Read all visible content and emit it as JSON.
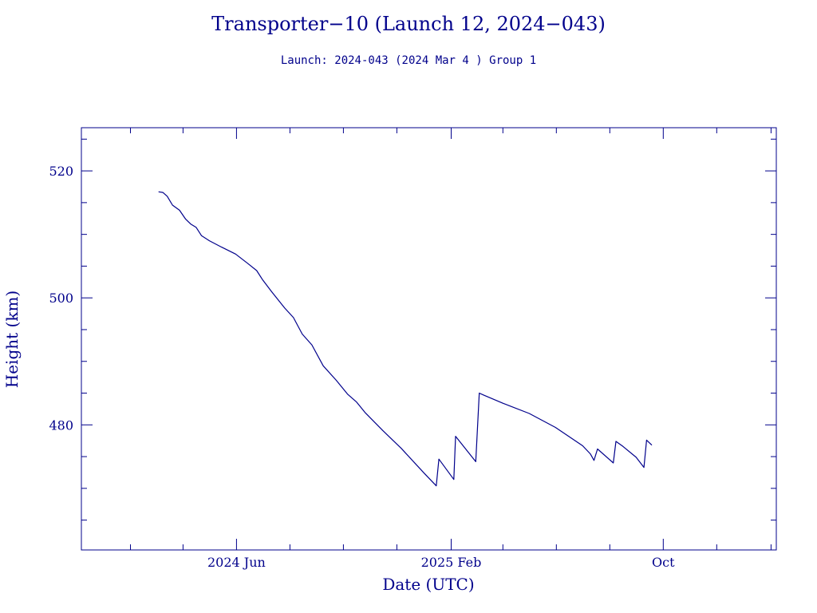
{
  "chart_data": {
    "type": "line",
    "title": "Transporter−10 (Launch 12, 2024−043)",
    "subtitle": "Launch: 2024-043  (2024 Mar  4 )  Group 1",
    "xlabel": "Date (UTC)",
    "ylabel": "Height (km)",
    "xlim": [
      "2023-12-07",
      "2026-02-07"
    ],
    "ylim": [
      460.3,
      526.8
    ],
    "x_ticks": [
      {
        "date": "2024-06-01",
        "label": "2024 Jun"
      },
      {
        "date": "2025-02-01",
        "label": "2025 Feb"
      },
      {
        "date": "2025-10-01",
        "label": "Oct"
      }
    ],
    "y_ticks": [
      {
        "value": 480,
        "label": "480"
      },
      {
        "value": 500,
        "label": "500"
      },
      {
        "value": 520,
        "label": "520"
      }
    ],
    "grid": false,
    "legend": "none",
    "color": "#00008b",
    "series": [
      {
        "points": [
          [
            "2024-03-04",
            516.7
          ],
          [
            "2024-03-09",
            516.6
          ],
          [
            "2024-03-14",
            516.0
          ],
          [
            "2024-03-20",
            514.6
          ],
          [
            "2024-03-28",
            513.8
          ],
          [
            "2024-04-04",
            512.4
          ],
          [
            "2024-04-10",
            511.6
          ],
          [
            "2024-04-16",
            511.1
          ],
          [
            "2024-04-22",
            509.8
          ],
          [
            "2024-05-01",
            509.0
          ],
          [
            "2024-05-15",
            508.0
          ],
          [
            "2024-05-31",
            506.9
          ],
          [
            "2024-06-14",
            505.4
          ],
          [
            "2024-06-24",
            504.3
          ],
          [
            "2024-07-01",
            502.8
          ],
          [
            "2024-07-11",
            501.0
          ],
          [
            "2024-07-26",
            498.4
          ],
          [
            "2024-08-05",
            496.9
          ],
          [
            "2024-08-15",
            494.3
          ],
          [
            "2024-08-26",
            492.6
          ],
          [
            "2024-09-08",
            489.3
          ],
          [
            "2024-09-23",
            487.0
          ],
          [
            "2024-10-06",
            484.8
          ],
          [
            "2024-10-16",
            483.6
          ],
          [
            "2024-10-26",
            481.9
          ],
          [
            "2024-11-15",
            479.1
          ],
          [
            "2024-12-06",
            476.3
          ],
          [
            "2025-01-01",
            472.4
          ],
          [
            "2025-01-15",
            470.4
          ],
          [
            "2025-01-18",
            474.6
          ],
          [
            "2025-02-04",
            471.4
          ],
          [
            "2025-02-06",
            478.2
          ],
          [
            "2025-03-01",
            474.2
          ],
          [
            "2025-03-05",
            485.0
          ],
          [
            "2025-03-10",
            484.7
          ],
          [
            "2025-04-01",
            483.4
          ],
          [
            "2025-05-01",
            481.8
          ],
          [
            "2025-05-31",
            479.6
          ],
          [
            "2025-06-15",
            478.2
          ],
          [
            "2025-07-01",
            476.7
          ],
          [
            "2025-07-10",
            475.4
          ],
          [
            "2025-07-14",
            474.4
          ],
          [
            "2025-07-18",
            476.2
          ],
          [
            "2025-08-05",
            474.0
          ],
          [
            "2025-08-08",
            477.4
          ],
          [
            "2025-08-16",
            476.6
          ],
          [
            "2025-08-31",
            474.9
          ],
          [
            "2025-09-09",
            473.3
          ],
          [
            "2025-09-12",
            477.6
          ],
          [
            "2025-09-18",
            476.8
          ]
        ]
      }
    ]
  }
}
